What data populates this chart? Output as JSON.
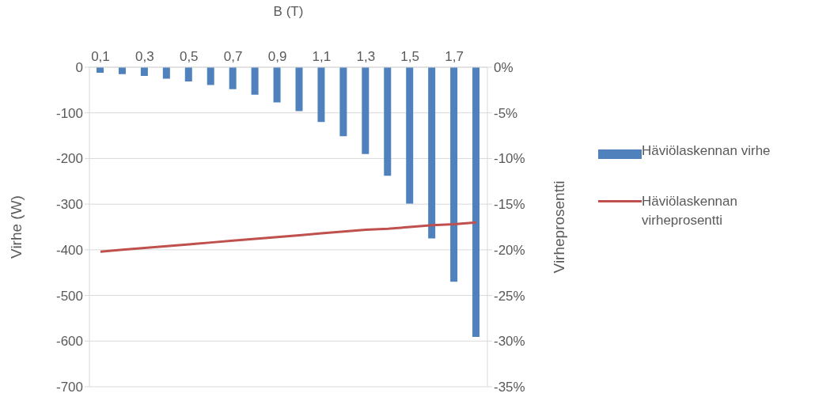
{
  "chart_data": {
    "type": "bar",
    "xlabel": "B (T)",
    "ylabel": "Virhe (W)",
    "y2label": "Virheprosentti",
    "categories": [
      "0,1",
      null,
      "0,3",
      null,
      "0,5",
      null,
      "0,7",
      null,
      "0,9",
      null,
      "1,1",
      null,
      "1,3",
      null,
      "1,5",
      null,
      "1,7",
      null
    ],
    "series": [
      {
        "name": "Häviölaskennan virhe",
        "color": "#4f81bd",
        "values": [
          -12,
          -15,
          -19,
          -25,
          -31,
          -39,
          -48,
          -60,
          -77,
          -96,
          -120,
          -151,
          -190,
          -238,
          -299,
          -375,
          -470,
          -591
        ]
      },
      {
        "name": "Häviölaskennan virheprosentti",
        "type": "line",
        "axis": "y2",
        "color": "#c0504d",
        "values": [
          -20.2,
          -20.0,
          -19.8,
          -19.6,
          -19.4,
          -19.2,
          -19.0,
          -18.8,
          -18.6,
          -18.4,
          -18.2,
          -18.0,
          -17.8,
          -17.7,
          -17.5,
          -17.3,
          -17.2,
          -17.0
        ]
      }
    ],
    "ylim": [
      -700,
      0
    ],
    "yticks": [
      -700,
      -600,
      -500,
      -400,
      -300,
      -200,
      -100,
      0
    ],
    "y2lim": [
      -35,
      0
    ],
    "y2ticks": [
      {
        "value": -35,
        "label": "-35%"
      },
      {
        "value": -30,
        "label": "-30%"
      },
      {
        "value": -25,
        "label": "-25%"
      },
      {
        "value": -20,
        "label": "-20%"
      },
      {
        "value": -15,
        "label": "-15%"
      },
      {
        "value": -10,
        "label": "-10%"
      },
      {
        "value": -5,
        "label": "-5%"
      },
      {
        "value": 0,
        "label": "0%"
      }
    ],
    "grid": "y",
    "legend": "right",
    "marker": "none",
    "line_style": "solid"
  }
}
